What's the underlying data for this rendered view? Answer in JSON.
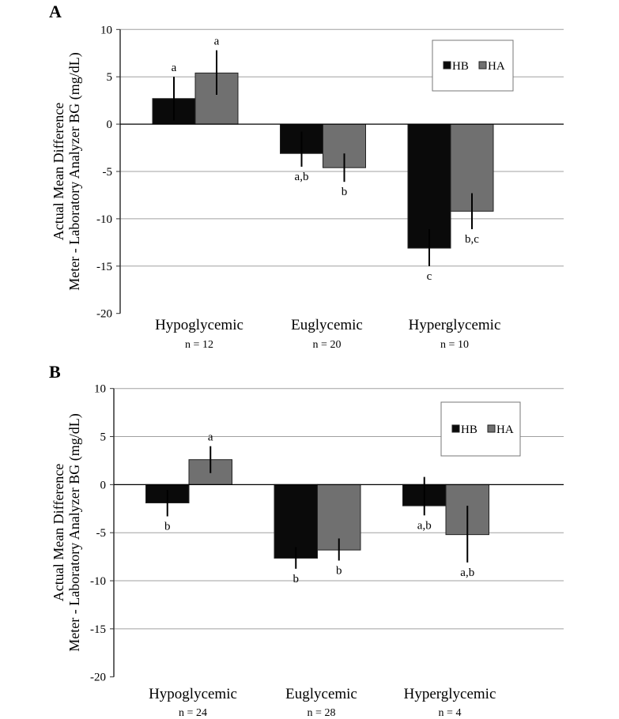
{
  "chart_data": [
    {
      "type": "bar",
      "panel_label": "A",
      "ylabel": [
        "Actual Mean Difference",
        "Meter - Laboratory Analyzer BG (mg/dL)"
      ],
      "ylim": [
        -20,
        10
      ],
      "yticks": [
        10,
        5,
        0,
        -5,
        -10,
        -15,
        -20
      ],
      "grid": true,
      "legend": "top-right",
      "categories": [
        "Hypoglycemic",
        "Euglycemic",
        "Hyperglycemic"
      ],
      "category_n": [
        "n = 12",
        "n = 20",
        "n = 10"
      ],
      "series": [
        {
          "name": "HB",
          "color": "#0a0a0a",
          "values": [
            2.7,
            -3.1,
            -13.1
          ],
          "error_low": [
            0.4,
            -4.5,
            -15.0
          ],
          "error_high": [
            5.0,
            -0.8,
            -11.1
          ],
          "letters": [
            "a",
            "a,b",
            "c"
          ]
        },
        {
          "name": "HA",
          "color": "#707070",
          "values": [
            5.4,
            -4.6,
            -9.2
          ],
          "error_low": [
            3.1,
            -6.1,
            -11.1
          ],
          "error_high": [
            7.8,
            -3.1,
            -7.3
          ],
          "letters": [
            "a",
            "b",
            "b,c"
          ]
        }
      ]
    },
    {
      "type": "bar",
      "panel_label": "B",
      "ylabel": [
        "Actual Mean Difference",
        "Meter - Laboratory Analyzer BG (mg/dL)"
      ],
      "ylim": [
        -20,
        10
      ],
      "yticks": [
        10,
        5,
        0,
        -5,
        -10,
        -15,
        -20
      ],
      "grid": true,
      "legend": "top-right",
      "categories": [
        "Hypoglycemic",
        "Euglycemic",
        "Hyperglycemic"
      ],
      "category_n": [
        "n = 24",
        "n = 28",
        "n = 4"
      ],
      "series": [
        {
          "name": "HB",
          "color": "#0a0a0a",
          "values": [
            -1.9,
            -7.65,
            -2.2
          ],
          "error_low": [
            -3.3,
            -8.75,
            -3.2
          ],
          "error_high": [
            -0.55,
            -6.5,
            0.8
          ],
          "letters": [
            "b",
            "b",
            "a,b"
          ]
        },
        {
          "name": "HA",
          "color": "#707070",
          "values": [
            2.6,
            -6.8,
            -5.2
          ],
          "error_low": [
            1.2,
            -7.9,
            -8.1
          ],
          "error_high": [
            4.0,
            -5.6,
            -2.2
          ],
          "letters": [
            "a",
            "b",
            "a,b"
          ]
        }
      ]
    }
  ]
}
